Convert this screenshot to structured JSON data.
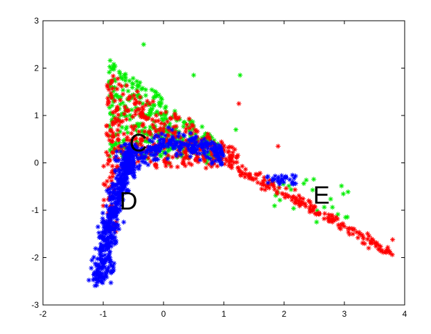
{
  "chart_data": {
    "type": "scatter",
    "title": "",
    "xlabel": "",
    "ylabel": "",
    "xlim": [
      -2,
      4
    ],
    "ylim": [
      -3,
      3
    ],
    "xticks": [
      "-2",
      "-1",
      "0",
      "1",
      "2",
      "3",
      "4"
    ],
    "yticks": [
      "-3",
      "-2",
      "-1",
      "0",
      "1",
      "2",
      "3"
    ],
    "grid": false,
    "marker": "asterisk",
    "series_colors": [
      "#00ee00",
      "#ff0000",
      "#0000ff"
    ],
    "annotations": [
      {
        "text": "C",
        "x": -0.42,
        "y": 0.38
      },
      {
        "text": "D",
        "x": -0.58,
        "y": -0.85
      },
      {
        "text": "E",
        "x": 2.62,
        "y": -0.72
      }
    ]
  }
}
